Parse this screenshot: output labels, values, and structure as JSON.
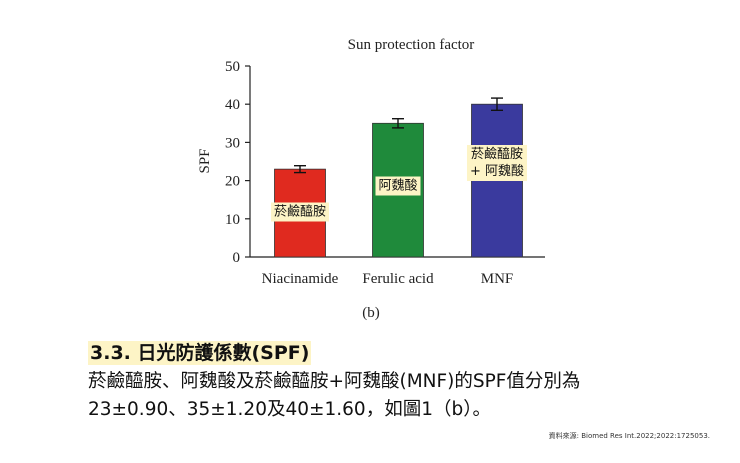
{
  "chart_data": {
    "type": "bar",
    "title": "Sun protection factor",
    "ylabel": "SPF",
    "xlabel": "",
    "ylim": [
      0,
      50
    ],
    "yticks": [
      0,
      10,
      20,
      30,
      40,
      50
    ],
    "categories": [
      "Niacinamide",
      "Ferulic acid",
      "MNF"
    ],
    "values": [
      23,
      35,
      40
    ],
    "errors": [
      0.9,
      1.2,
      1.6
    ],
    "colors": [
      "#e02a1f",
      "#1f8a3b",
      "#3a3a9e"
    ],
    "panel_label": "(b)",
    "grid": false,
    "legend": "none"
  },
  "annotations": {
    "bar_labels": [
      [
        "菸鹼醯胺"
      ],
      [
        "阿魏酸"
      ],
      [
        "菸鹼醯胺",
        "+ 阿魏酸"
      ]
    ]
  },
  "text": {
    "section_title": "3.3. 日光防護係數(SPF)",
    "body_line_1": "菸鹼醯胺、阿魏酸及菸鹼醯胺+阿魏酸(MNF)的SPF值分別為",
    "body_line_2": "23±0.90、35±1.20及40±1.60，如圖1（b）。",
    "source_note": "資料來源: Biomed Res Int.2022;2022:1725053."
  }
}
